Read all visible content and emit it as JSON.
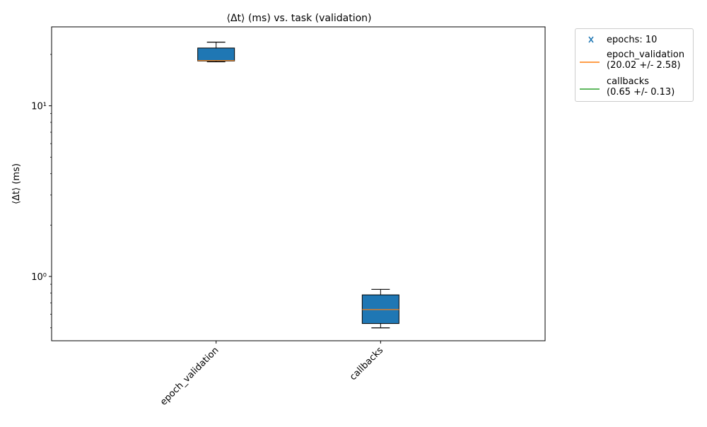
{
  "chart_data": {
    "type": "boxplot",
    "title": "⟨Δt⟩ (ms) vs. task (validation)",
    "ylabel": "⟨Δt⟩ (ms)",
    "xlabel": "",
    "yscale": "log",
    "ylim": [
      0.42,
      29
    ],
    "y_ticks": [
      {
        "value": 1,
        "label": "10⁰"
      },
      {
        "value": 10,
        "label": "10¹"
      }
    ],
    "categories": [
      "epoch_validation",
      "callbacks"
    ],
    "boxes": [
      {
        "category": "epoch_validation",
        "whisker_low": 18.1,
        "q1": 18.3,
        "median": 18.4,
        "q3": 21.8,
        "whisker_high": 23.6
      },
      {
        "category": "callbacks",
        "whisker_low": 0.5,
        "q1": 0.53,
        "median": 0.64,
        "q3": 0.78,
        "whisker_high": 0.84
      }
    ],
    "box_color": "#1f77b4",
    "median_color": "#ff7f0e",
    "grid": false,
    "legend": {
      "placement": "outside-top-right",
      "entries": [
        {
          "label": "epochs: 10",
          "marker": "x",
          "color": "#1f77b4"
        },
        {
          "label": "epoch_validation\n(20.02 +/- 2.58)",
          "marker": "line",
          "color": "#ff7f0e"
        },
        {
          "label": "callbacks\n(0.65 +/- 0.13)",
          "marker": "line",
          "color": "#2ca02c"
        }
      ]
    }
  }
}
